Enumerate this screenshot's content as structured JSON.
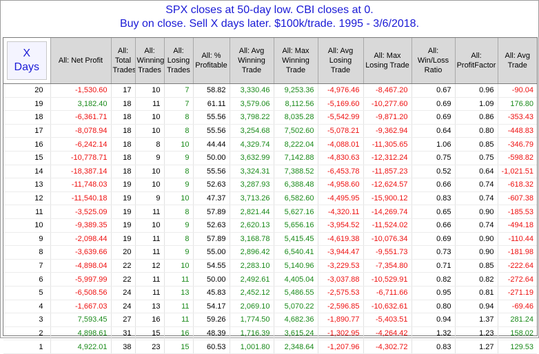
{
  "title": {
    "line1": "SPX closes at 50-day low. CBI closes at 0.",
    "line2": "Buy on close. Sell X days later. $100k/trade. 1995 - 3/6/2018."
  },
  "colors": {
    "title": "#1a1ad6",
    "negative": "#ee1010",
    "positive": "#1a8a1a",
    "header_bg": "#d9d9d9"
  },
  "table": {
    "headers": {
      "days_line1": "X",
      "days_line2": "Days",
      "net_profit": "All: Net Profit",
      "total_trades": "All: Total Trades",
      "winning_trades": "All: Winning Trades",
      "losing_trades": "All: Losing Trades",
      "pct_profitable": "All: % Profitable",
      "avg_winning": "All: Avg Winning Trade",
      "max_winning": "All: Max Winning Trade",
      "avg_losing": "All: Avg Losing Trade",
      "max_losing": "All: Max Losing Trade",
      "win_loss_ratio": "All: Win/Loss Ratio",
      "profit_factor": "All: ProfitFactor",
      "avg_trade": "All: Avg Trade"
    },
    "rows": [
      [
        "20",
        "-1,530.60",
        "17",
        "10",
        "7",
        "58.82",
        "3,330.46",
        "9,253.36",
        "-4,976.46",
        "-8,467.20",
        "0.67",
        "0.96",
        "-90.04"
      ],
      [
        "19",
        "3,182.40",
        "18",
        "11",
        "7",
        "61.11",
        "3,579.06",
        "8,112.56",
        "-5,169.60",
        "-10,277.60",
        "0.69",
        "1.09",
        "176.80"
      ],
      [
        "18",
        "-6,361.71",
        "18",
        "10",
        "8",
        "55.56",
        "3,798.22",
        "8,035.28",
        "-5,542.99",
        "-9,871.20",
        "0.69",
        "0.86",
        "-353.43"
      ],
      [
        "17",
        "-8,078.94",
        "18",
        "10",
        "8",
        "55.56",
        "3,254.68",
        "7,502.60",
        "-5,078.21",
        "-9,362.94",
        "0.64",
        "0.80",
        "-448.83"
      ],
      [
        "16",
        "-6,242.14",
        "18",
        "8",
        "10",
        "44.44",
        "4,329.74",
        "8,222.04",
        "-4,088.01",
        "-11,305.65",
        "1.06",
        "0.85",
        "-346.79"
      ],
      [
        "15",
        "-10,778.71",
        "18",
        "9",
        "9",
        "50.00",
        "3,632.99",
        "7,142.88",
        "-4,830.63",
        "-12,312.24",
        "0.75",
        "0.75",
        "-598.82"
      ],
      [
        "14",
        "-18,387.14",
        "18",
        "10",
        "8",
        "55.56",
        "3,324.31",
        "7,388.52",
        "-6,453.78",
        "-11,857.23",
        "0.52",
        "0.64",
        "-1,021.51"
      ],
      [
        "13",
        "-11,748.03",
        "19",
        "10",
        "9",
        "52.63",
        "3,287.93",
        "6,388.48",
        "-4,958.60",
        "-12,624.57",
        "0.66",
        "0.74",
        "-618.32"
      ],
      [
        "12",
        "-11,540.18",
        "19",
        "9",
        "10",
        "47.37",
        "3,713.26",
        "6,582.60",
        "-4,495.95",
        "-15,900.12",
        "0.83",
        "0.74",
        "-607.38"
      ],
      [
        "11",
        "-3,525.09",
        "19",
        "11",
        "8",
        "57.89",
        "2,821.44",
        "5,627.16",
        "-4,320.11",
        "-14,269.74",
        "0.65",
        "0.90",
        "-185.53"
      ],
      [
        "10",
        "-9,389.35",
        "19",
        "10",
        "9",
        "52.63",
        "2,620.13",
        "5,656.16",
        "-3,954.52",
        "-11,524.02",
        "0.66",
        "0.74",
        "-494.18"
      ],
      [
        "9",
        "-2,098.44",
        "19",
        "11",
        "8",
        "57.89",
        "3,168.78",
        "5,415.45",
        "-4,619.38",
        "-10,076.34",
        "0.69",
        "0.90",
        "-110.44"
      ],
      [
        "8",
        "-3,639.66",
        "20",
        "11",
        "9",
        "55.00",
        "2,896.42",
        "6,540.41",
        "-3,944.47",
        "-9,551.73",
        "0.73",
        "0.90",
        "-181.98"
      ],
      [
        "7",
        "-4,898.04",
        "22",
        "12",
        "10",
        "54.55",
        "2,283.10",
        "5,140.96",
        "-3,229.53",
        "-7,354.80",
        "0.71",
        "0.85",
        "-222.64"
      ],
      [
        "6",
        "-5,997.99",
        "22",
        "11",
        "11",
        "50.00",
        "2,492.61",
        "4,405.04",
        "-3,037.88",
        "-10,529.91",
        "0.82",
        "0.82",
        "-272.64"
      ],
      [
        "5",
        "-6,508.56",
        "24",
        "11",
        "13",
        "45.83",
        "2,452.12",
        "5,486.55",
        "-2,575.53",
        "-6,711.66",
        "0.95",
        "0.81",
        "-271.19"
      ],
      [
        "4",
        "-1,667.03",
        "24",
        "13",
        "11",
        "54.17",
        "2,069.10",
        "5,070.22",
        "-2,596.85",
        "-10,632.61",
        "0.80",
        "0.94",
        "-69.46"
      ],
      [
        "3",
        "7,593.45",
        "27",
        "16",
        "11",
        "59.26",
        "1,774.50",
        "4,682.36",
        "-1,890.77",
        "-5,403.51",
        "0.94",
        "1.37",
        "281.24"
      ],
      [
        "2",
        "4,898.61",
        "31",
        "15",
        "16",
        "48.39",
        "1,716.39",
        "3,615.24",
        "-1,302.95",
        "-4,264.42",
        "1.32",
        "1.23",
        "158.02"
      ],
      [
        "1",
        "4,922.01",
        "38",
        "23",
        "15",
        "60.53",
        "1,001.80",
        "2,348.64",
        "-1,207.96",
        "-4,302.72",
        "0.83",
        "1.27",
        "129.53"
      ]
    ]
  }
}
